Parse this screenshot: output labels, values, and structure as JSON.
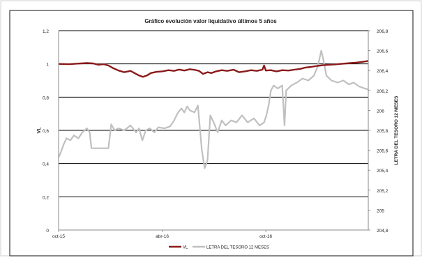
{
  "chart_data": {
    "type": "line",
    "title": "Gráfico evolución valor liquidativo últimos 5 años",
    "ylabel": "VL",
    "y2label": "LETRA DEL TESORO 12 MESES",
    "xlim": [
      "2015-10-01",
      "2017-03-31"
    ],
    "x_ticks": [
      {
        "date": "2015-10-01",
        "label": "oct-15"
      },
      {
        "date": "2016-04-01",
        "label": "abr-16"
      },
      {
        "date": "2016-10-01",
        "label": "oct-16"
      }
    ],
    "ylim": [
      0,
      1.2
    ],
    "y_ticks": [
      "0",
      "0,2",
      "0,4",
      "0,6",
      "0,8",
      "1",
      "1,2"
    ],
    "y_tick_values": [
      0,
      0.2,
      0.4,
      0.6,
      0.8,
      1,
      1.2
    ],
    "y2lim": [
      204.8,
      206.8
    ],
    "y2_ticks": [
      "204,8",
      "205",
      "205,2",
      "205,4",
      "205,6",
      "205,8",
      "206",
      "206,2",
      "206,4",
      "206,6",
      "206,8"
    ],
    "y2_tick_values": [
      204.8,
      205,
      205.2,
      205.4,
      205.6,
      205.8,
      206,
      206.2,
      206.4,
      206.6,
      206.8
    ],
    "grid": "horizontal",
    "legend_position": "bottom",
    "series": [
      {
        "name": "VL",
        "axis": "left",
        "color": "#8b1a1a",
        "points": [
          [
            "2015-10-01",
            1.0
          ],
          [
            "2015-10-20",
            0.998
          ],
          [
            "2015-11-05",
            1.002
          ],
          [
            "2015-11-20",
            1.005
          ],
          [
            "2015-12-01",
            1.003
          ],
          [
            "2015-12-10",
            0.995
          ],
          [
            "2015-12-20",
            0.998
          ],
          [
            "2015-12-28",
            0.99
          ],
          [
            "2016-01-05",
            0.975
          ],
          [
            "2016-01-15",
            0.96
          ],
          [
            "2016-01-25",
            0.95
          ],
          [
            "2016-02-05",
            0.958
          ],
          [
            "2016-02-12",
            0.945
          ],
          [
            "2016-02-20",
            0.93
          ],
          [
            "2016-02-27",
            0.922
          ],
          [
            "2016-03-05",
            0.93
          ],
          [
            "2016-03-12",
            0.945
          ],
          [
            "2016-03-22",
            0.952
          ],
          [
            "2016-04-01",
            0.955
          ],
          [
            "2016-04-12",
            0.962
          ],
          [
            "2016-04-22",
            0.958
          ],
          [
            "2016-05-01",
            0.966
          ],
          [
            "2016-05-10",
            0.96
          ],
          [
            "2016-05-20",
            0.968
          ],
          [
            "2016-05-30",
            0.963
          ],
          [
            "2016-06-05",
            0.958
          ],
          [
            "2016-06-12",
            0.94
          ],
          [
            "2016-06-20",
            0.95
          ],
          [
            "2016-06-27",
            0.945
          ],
          [
            "2016-07-05",
            0.955
          ],
          [
            "2016-07-15",
            0.962
          ],
          [
            "2016-07-25",
            0.958
          ],
          [
            "2016-08-05",
            0.965
          ],
          [
            "2016-08-15",
            0.95
          ],
          [
            "2016-08-25",
            0.955
          ],
          [
            "2016-09-05",
            0.962
          ],
          [
            "2016-09-15",
            0.958
          ],
          [
            "2016-09-25",
            0.965
          ],
          [
            "2016-09-28",
            0.99
          ],
          [
            "2016-10-01",
            0.96
          ],
          [
            "2016-10-10",
            0.962
          ],
          [
            "2016-10-20",
            0.955
          ],
          [
            "2016-10-30",
            0.962
          ],
          [
            "2016-11-10",
            0.96
          ],
          [
            "2016-11-20",
            0.965
          ],
          [
            "2016-12-01",
            0.97
          ],
          [
            "2016-12-10",
            0.978
          ],
          [
            "2016-12-20",
            0.982
          ],
          [
            "2016-12-31",
            0.988
          ],
          [
            "2017-01-10",
            0.992
          ],
          [
            "2017-01-20",
            0.995
          ],
          [
            "2017-01-31",
            0.997
          ],
          [
            "2017-02-10",
            1.0
          ],
          [
            "2017-02-20",
            1.003
          ],
          [
            "2017-02-28",
            1.005
          ],
          [
            "2017-03-10",
            1.008
          ],
          [
            "2017-03-20",
            1.012
          ],
          [
            "2017-03-31",
            1.018
          ]
        ]
      },
      {
        "name": "LETRA DEL TESORO 12 MESES",
        "axis": "right",
        "color": "#c0c0c0",
        "points": [
          [
            "2015-10-01",
            205.53
          ],
          [
            "2015-10-05",
            205.58
          ],
          [
            "2015-10-10",
            205.66
          ],
          [
            "2015-10-15",
            205.72
          ],
          [
            "2015-10-22",
            205.7
          ],
          [
            "2015-10-28",
            205.75
          ],
          [
            "2015-11-05",
            205.72
          ],
          [
            "2015-11-12",
            205.78
          ],
          [
            "2015-11-20",
            205.82
          ],
          [
            "2015-11-25",
            205.78
          ],
          [
            "2015-11-28",
            205.62
          ],
          [
            "2015-12-15",
            205.62
          ],
          [
            "2015-12-28",
            205.62
          ],
          [
            "2016-01-02",
            205.86
          ],
          [
            "2016-01-08",
            205.8
          ],
          [
            "2016-01-15",
            205.82
          ],
          [
            "2016-01-25",
            205.8
          ],
          [
            "2016-02-05",
            205.85
          ],
          [
            "2016-02-15",
            205.78
          ],
          [
            "2016-02-20",
            205.82
          ],
          [
            "2016-02-26",
            205.7
          ],
          [
            "2016-03-03",
            205.8
          ],
          [
            "2016-03-10",
            205.82
          ],
          [
            "2016-03-18",
            205.78
          ],
          [
            "2016-03-25",
            205.83
          ],
          [
            "2016-04-05",
            205.82
          ],
          [
            "2016-04-15",
            205.84
          ],
          [
            "2016-04-22",
            205.9
          ],
          [
            "2016-04-28",
            205.97
          ],
          [
            "2016-05-05",
            206.02
          ],
          [
            "2016-05-10",
            205.98
          ],
          [
            "2016-05-15",
            206.04
          ],
          [
            "2016-05-20",
            206.0
          ],
          [
            "2016-05-28",
            205.98
          ],
          [
            "2016-06-03",
            206.05
          ],
          [
            "2016-06-10",
            205.6
          ],
          [
            "2016-06-15",
            205.42
          ],
          [
            "2016-06-20",
            205.5
          ],
          [
            "2016-06-25",
            205.95
          ],
          [
            "2016-07-01",
            205.88
          ],
          [
            "2016-07-08",
            205.78
          ],
          [
            "2016-07-15",
            205.9
          ],
          [
            "2016-07-22",
            205.85
          ],
          [
            "2016-08-01",
            205.9
          ],
          [
            "2016-08-10",
            205.88
          ],
          [
            "2016-08-20",
            205.95
          ],
          [
            "2016-08-30",
            205.88
          ],
          [
            "2016-09-10",
            205.92
          ],
          [
            "2016-09-20",
            205.85
          ],
          [
            "2016-09-28",
            205.88
          ],
          [
            "2016-10-02",
            205.95
          ],
          [
            "2016-10-06",
            206.05
          ],
          [
            "2016-10-10",
            206.2
          ],
          [
            "2016-10-15",
            206.25
          ],
          [
            "2016-10-22",
            206.22
          ],
          [
            "2016-10-30",
            206.25
          ],
          [
            "2016-11-03",
            205.85
          ],
          [
            "2016-11-06",
            206.2
          ],
          [
            "2016-11-15",
            206.25
          ],
          [
            "2016-11-25",
            206.28
          ],
          [
            "2016-12-05",
            206.32
          ],
          [
            "2016-12-15",
            206.3
          ],
          [
            "2016-12-25",
            206.35
          ],
          [
            "2017-01-01",
            206.45
          ],
          [
            "2017-01-07",
            206.6
          ],
          [
            "2017-01-11",
            206.5
          ],
          [
            "2017-01-16",
            206.35
          ],
          [
            "2017-01-25",
            206.3
          ],
          [
            "2017-02-05",
            206.28
          ],
          [
            "2017-02-15",
            206.3
          ],
          [
            "2017-02-25",
            206.26
          ],
          [
            "2017-03-05",
            206.28
          ],
          [
            "2017-03-15",
            206.24
          ],
          [
            "2017-03-25",
            206.22
          ],
          [
            "2017-03-31",
            206.21
          ]
        ]
      }
    ]
  }
}
